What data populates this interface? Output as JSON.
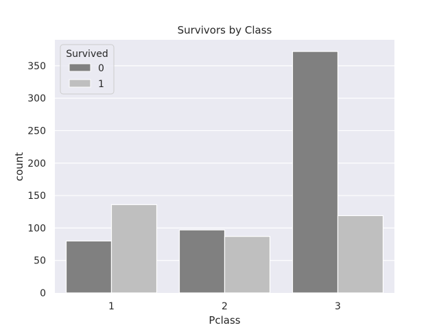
{
  "chart_data": {
    "type": "bar",
    "title": "Survivors by Class",
    "xlabel": "Pclass",
    "ylabel": "count",
    "categories": [
      "1",
      "2",
      "3"
    ],
    "series": [
      {
        "name": "0",
        "values": [
          80,
          97,
          372
        ],
        "color": "#808080"
      },
      {
        "name": "1",
        "values": [
          136,
          87,
          119
        ],
        "color": "#bfbfbf"
      }
    ],
    "ylim": [
      0,
      390
    ],
    "yticks": [
      0,
      50,
      100,
      150,
      200,
      250,
      300,
      350
    ],
    "legend": {
      "title": "Survived",
      "placement": "top-left"
    },
    "grid": true,
    "background_color": "#eaeaf2"
  }
}
